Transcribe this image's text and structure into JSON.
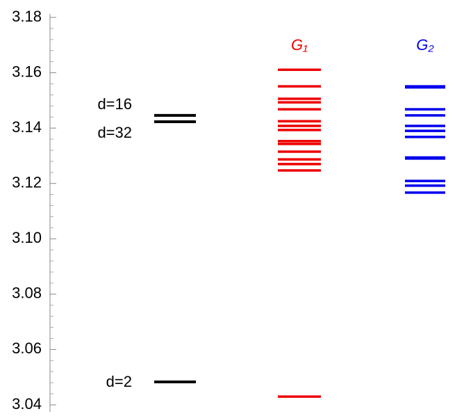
{
  "chart_data": {
    "type": "level",
    "ylim": [
      3.04,
      3.18
    ],
    "yticks": [
      {
        "value": 3.04,
        "label": "3.04"
      },
      {
        "value": 3.06,
        "label": "3.06"
      },
      {
        "value": 3.08,
        "label": "3.08"
      },
      {
        "value": 3.1,
        "label": "3.10"
      },
      {
        "value": 3.12,
        "label": "3.12"
      },
      {
        "value": 3.14,
        "label": "3.14"
      },
      {
        "value": 3.16,
        "label": "3.16"
      },
      {
        "value": 3.18,
        "label": "3.18"
      }
    ],
    "yminorticks": [
      3.044,
      3.048,
      3.052,
      3.056,
      3.064,
      3.068,
      3.072,
      3.076,
      3.084,
      3.088,
      3.092,
      3.096,
      3.104,
      3.108,
      3.112,
      3.116,
      3.124,
      3.128,
      3.132,
      3.136,
      3.144,
      3.148,
      3.152,
      3.156,
      3.164,
      3.168,
      3.172,
      3.176
    ],
    "series": [
      {
        "color": "#000000",
        "values": [
          3.1446,
          3.1423,
          3.0483
        ]
      },
      {
        "name": "G₁",
        "color": "#ee0000",
        "values": [
          3.1611,
          3.1551,
          3.1506,
          3.1493,
          3.1468,
          3.1425,
          3.1408,
          3.1393,
          3.1353,
          3.1343,
          3.1315,
          3.1287,
          3.127,
          3.1247,
          3.043
        ]
      },
      {
        "name": "G₂",
        "color": "#0000ee",
        "values": [
          3.1551,
          3.1547,
          3.1468,
          3.1446,
          3.1408,
          3.139,
          3.1368,
          3.1294,
          3.129,
          3.1209,
          3.1192,
          3.1167
        ]
      }
    ],
    "annotations": [
      "d=16",
      "d=32",
      "d=2"
    ]
  }
}
